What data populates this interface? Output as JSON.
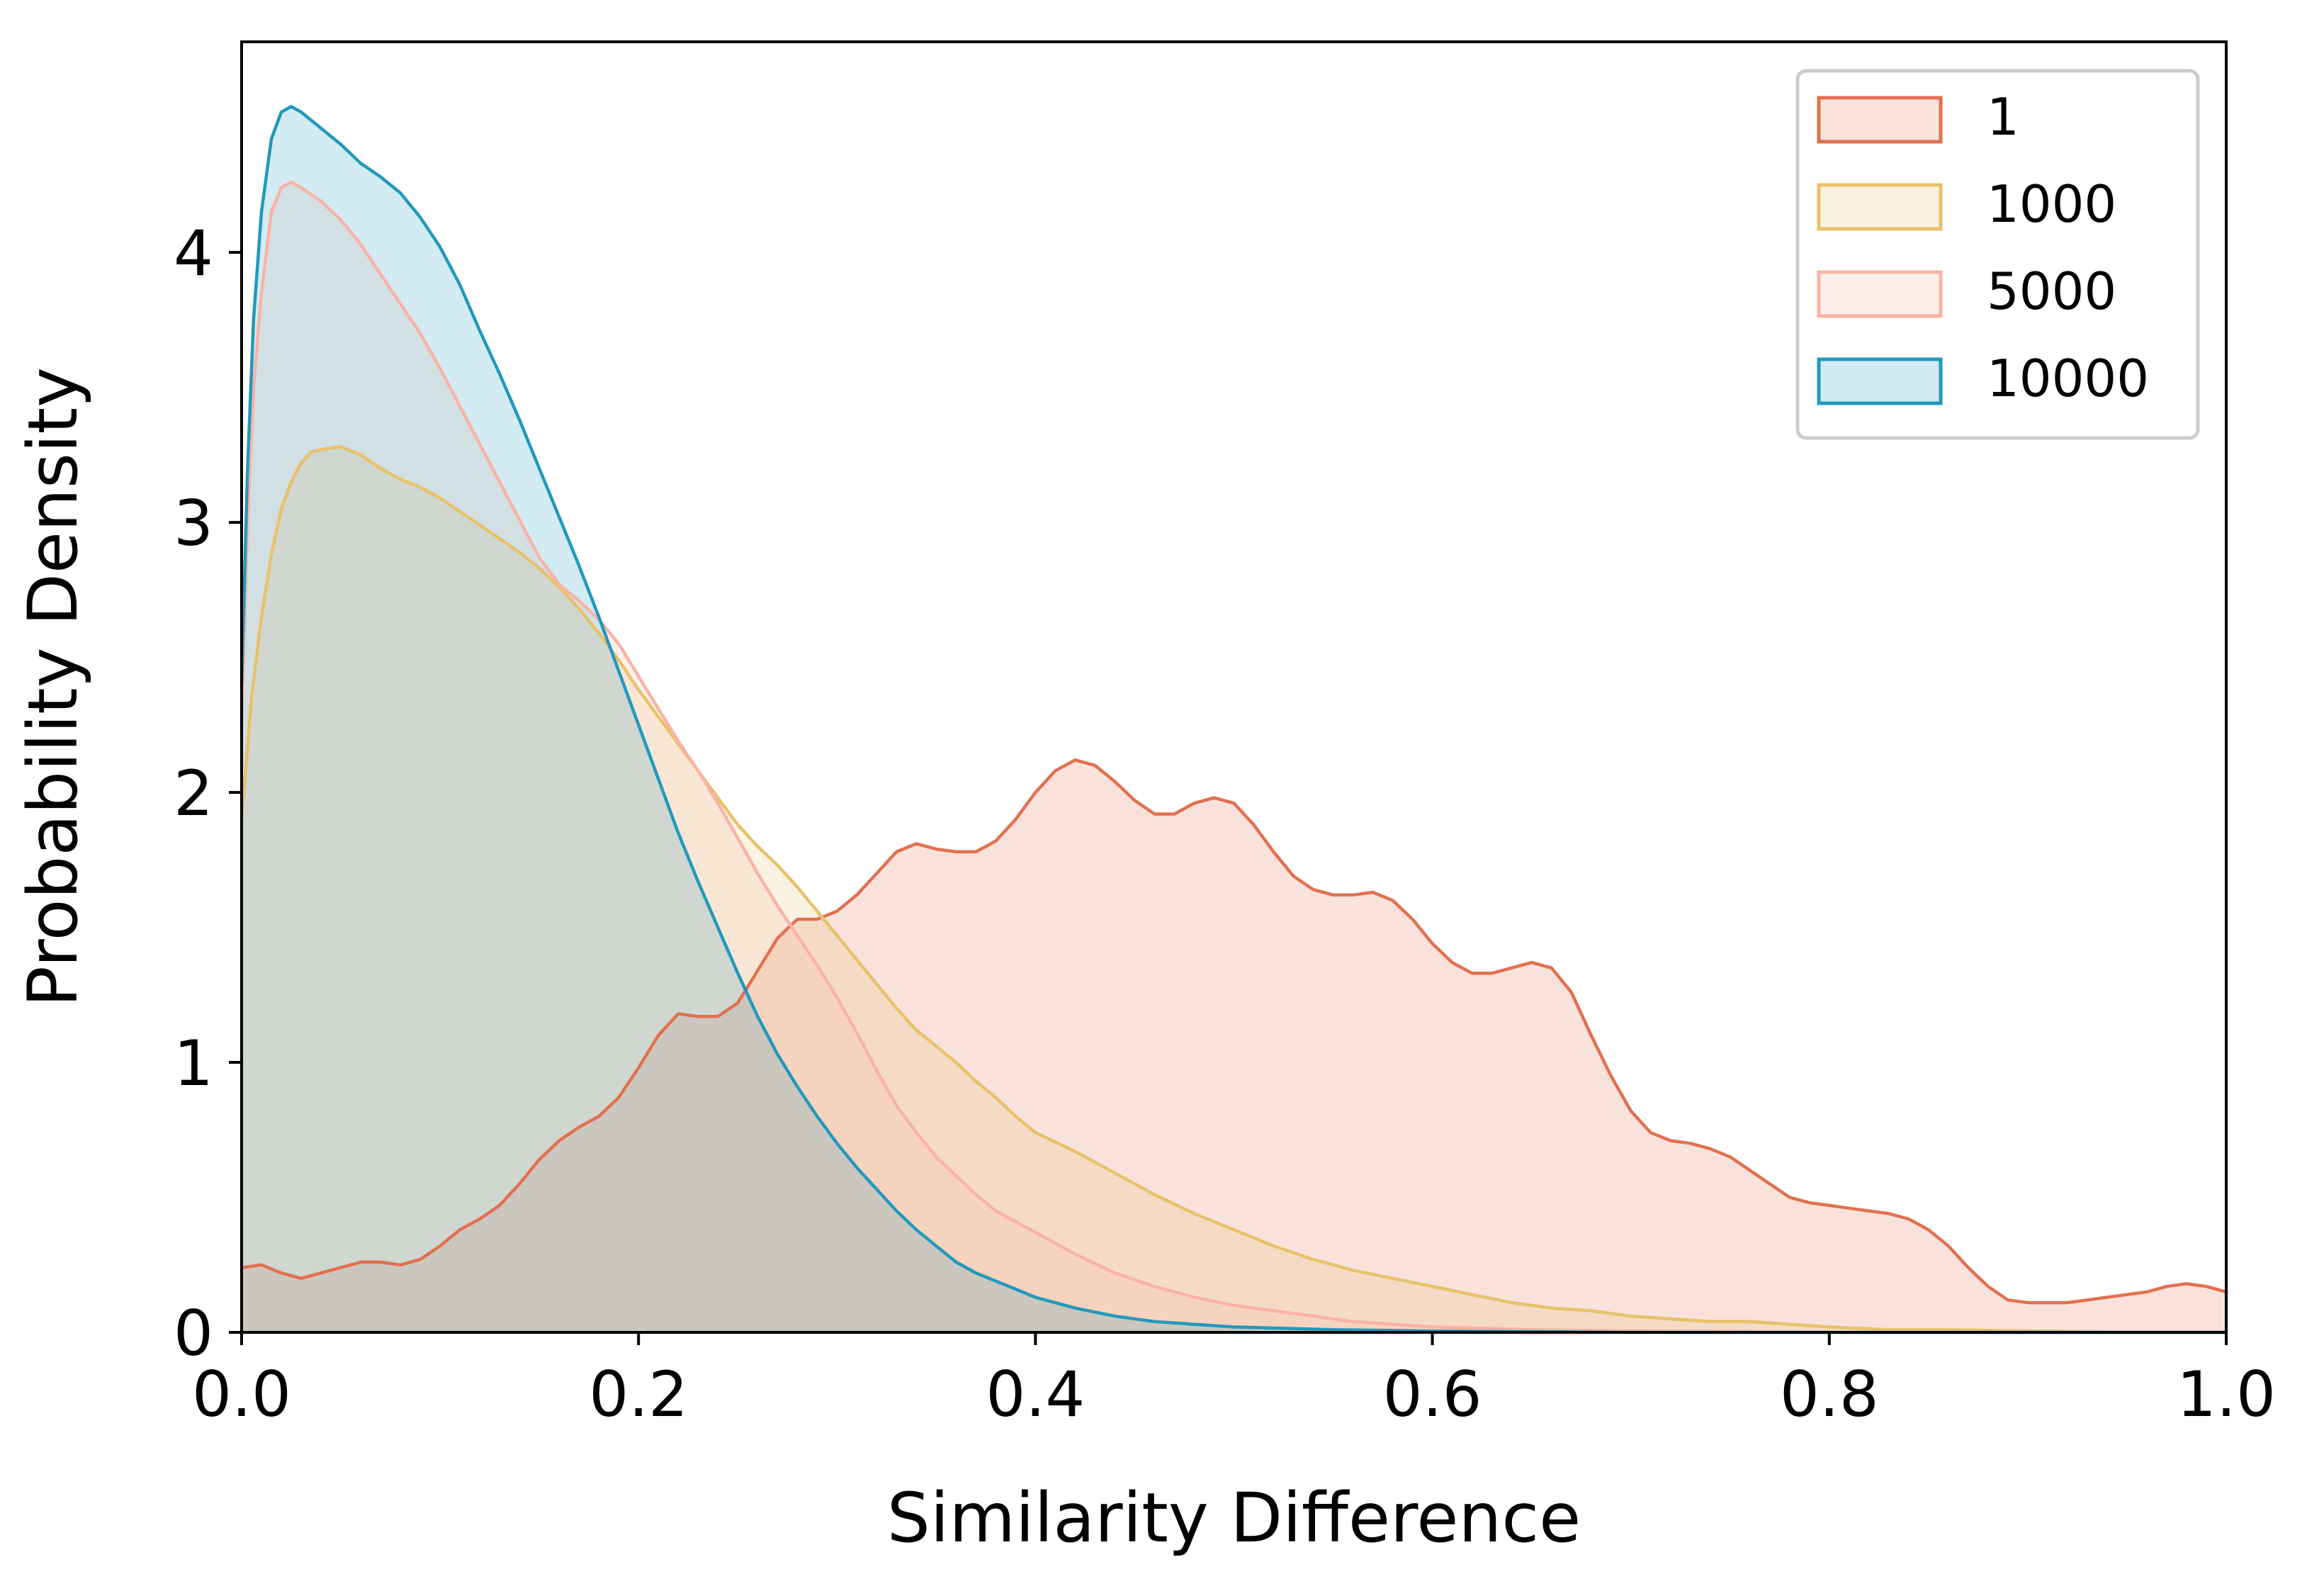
{
  "chart_data": {
    "type": "area",
    "title": "",
    "xlabel": "Similarity Difference",
    "ylabel": "Probability Density",
    "xlim": [
      0.0,
      1.0
    ],
    "ylim": [
      0,
      4.78
    ],
    "x_ticks": [
      "0.0",
      "0.2",
      "0.4",
      "0.6",
      "0.8",
      "1.0"
    ],
    "y_ticks": [
      "0",
      "1",
      "2",
      "3",
      "4"
    ],
    "grid": false,
    "legend_position": "top-right",
    "series": [
      {
        "name": "1",
        "color": "#E3704F",
        "points": [
          [
            0.0,
            0.24
          ],
          [
            0.01,
            0.25
          ],
          [
            0.02,
            0.22
          ],
          [
            0.03,
            0.2
          ],
          [
            0.04,
            0.22
          ],
          [
            0.05,
            0.24
          ],
          [
            0.06,
            0.26
          ],
          [
            0.07,
            0.26
          ],
          [
            0.08,
            0.25
          ],
          [
            0.09,
            0.27
          ],
          [
            0.1,
            0.32
          ],
          [
            0.11,
            0.38
          ],
          [
            0.12,
            0.42
          ],
          [
            0.13,
            0.47
          ],
          [
            0.14,
            0.55
          ],
          [
            0.15,
            0.64
          ],
          [
            0.16,
            0.71
          ],
          [
            0.17,
            0.76
          ],
          [
            0.18,
            0.8
          ],
          [
            0.19,
            0.87
          ],
          [
            0.2,
            0.98
          ],
          [
            0.21,
            1.1
          ],
          [
            0.22,
            1.18
          ],
          [
            0.23,
            1.17
          ],
          [
            0.24,
            1.17
          ],
          [
            0.25,
            1.22
          ],
          [
            0.26,
            1.34
          ],
          [
            0.27,
            1.46
          ],
          [
            0.28,
            1.53
          ],
          [
            0.29,
            1.53
          ],
          [
            0.3,
            1.56
          ],
          [
            0.31,
            1.62
          ],
          [
            0.32,
            1.7
          ],
          [
            0.33,
            1.78
          ],
          [
            0.34,
            1.81
          ],
          [
            0.35,
            1.79
          ],
          [
            0.36,
            1.78
          ],
          [
            0.37,
            1.78
          ],
          [
            0.38,
            1.82
          ],
          [
            0.39,
            1.9
          ],
          [
            0.4,
            2.0
          ],
          [
            0.41,
            2.08
          ],
          [
            0.42,
            2.12
          ],
          [
            0.43,
            2.1
          ],
          [
            0.44,
            2.04
          ],
          [
            0.45,
            1.97
          ],
          [
            0.46,
            1.92
          ],
          [
            0.47,
            1.92
          ],
          [
            0.48,
            1.96
          ],
          [
            0.49,
            1.98
          ],
          [
            0.5,
            1.96
          ],
          [
            0.51,
            1.88
          ],
          [
            0.52,
            1.78
          ],
          [
            0.53,
            1.69
          ],
          [
            0.54,
            1.64
          ],
          [
            0.55,
            1.62
          ],
          [
            0.56,
            1.62
          ],
          [
            0.57,
            1.63
          ],
          [
            0.58,
            1.6
          ],
          [
            0.59,
            1.53
          ],
          [
            0.6,
            1.44
          ],
          [
            0.61,
            1.37
          ],
          [
            0.62,
            1.33
          ],
          [
            0.63,
            1.33
          ],
          [
            0.64,
            1.35
          ],
          [
            0.65,
            1.37
          ],
          [
            0.66,
            1.35
          ],
          [
            0.67,
            1.26
          ],
          [
            0.68,
            1.1
          ],
          [
            0.69,
            0.95
          ],
          [
            0.7,
            0.82
          ],
          [
            0.71,
            0.74
          ],
          [
            0.72,
            0.71
          ],
          [
            0.73,
            0.7
          ],
          [
            0.74,
            0.68
          ],
          [
            0.75,
            0.65
          ],
          [
            0.76,
            0.6
          ],
          [
            0.77,
            0.55
          ],
          [
            0.78,
            0.5
          ],
          [
            0.79,
            0.48
          ],
          [
            0.8,
            0.47
          ],
          [
            0.81,
            0.46
          ],
          [
            0.82,
            0.45
          ],
          [
            0.83,
            0.44
          ],
          [
            0.84,
            0.42
          ],
          [
            0.85,
            0.38
          ],
          [
            0.86,
            0.32
          ],
          [
            0.87,
            0.24
          ],
          [
            0.88,
            0.17
          ],
          [
            0.89,
            0.12
          ],
          [
            0.9,
            0.11
          ],
          [
            0.91,
            0.11
          ],
          [
            0.92,
            0.11
          ],
          [
            0.93,
            0.12
          ],
          [
            0.94,
            0.13
          ],
          [
            0.95,
            0.14
          ],
          [
            0.96,
            0.15
          ],
          [
            0.97,
            0.17
          ],
          [
            0.98,
            0.18
          ],
          [
            0.99,
            0.17
          ],
          [
            1.0,
            0.15
          ]
        ]
      },
      {
        "name": "1000",
        "color": "#E8C26A",
        "points": [
          [
            0.0,
            1.9
          ],
          [
            0.005,
            2.35
          ],
          [
            0.01,
            2.65
          ],
          [
            0.015,
            2.88
          ],
          [
            0.02,
            3.05
          ],
          [
            0.025,
            3.15
          ],
          [
            0.03,
            3.22
          ],
          [
            0.035,
            3.26
          ],
          [
            0.04,
            3.27
          ],
          [
            0.05,
            3.28
          ],
          [
            0.06,
            3.25
          ],
          [
            0.07,
            3.2
          ],
          [
            0.08,
            3.16
          ],
          [
            0.09,
            3.13
          ],
          [
            0.1,
            3.09
          ],
          [
            0.11,
            3.04
          ],
          [
            0.12,
            2.99
          ],
          [
            0.13,
            2.94
          ],
          [
            0.14,
            2.89
          ],
          [
            0.15,
            2.83
          ],
          [
            0.16,
            2.76
          ],
          [
            0.17,
            2.68
          ],
          [
            0.18,
            2.59
          ],
          [
            0.19,
            2.49
          ],
          [
            0.2,
            2.38
          ],
          [
            0.21,
            2.28
          ],
          [
            0.22,
            2.18
          ],
          [
            0.23,
            2.08
          ],
          [
            0.24,
            1.98
          ],
          [
            0.25,
            1.88
          ],
          [
            0.26,
            1.8
          ],
          [
            0.27,
            1.73
          ],
          [
            0.28,
            1.65
          ],
          [
            0.29,
            1.56
          ],
          [
            0.3,
            1.47
          ],
          [
            0.31,
            1.38
          ],
          [
            0.32,
            1.29
          ],
          [
            0.33,
            1.2
          ],
          [
            0.34,
            1.12
          ],
          [
            0.35,
            1.06
          ],
          [
            0.36,
            1.0
          ],
          [
            0.37,
            0.93
          ],
          [
            0.38,
            0.87
          ],
          [
            0.39,
            0.8
          ],
          [
            0.4,
            0.74
          ],
          [
            0.42,
            0.67
          ],
          [
            0.44,
            0.59
          ],
          [
            0.46,
            0.51
          ],
          [
            0.48,
            0.44
          ],
          [
            0.5,
            0.38
          ],
          [
            0.52,
            0.32
          ],
          [
            0.54,
            0.27
          ],
          [
            0.56,
            0.23
          ],
          [
            0.58,
            0.2
          ],
          [
            0.6,
            0.17
          ],
          [
            0.62,
            0.14
          ],
          [
            0.64,
            0.11
          ],
          [
            0.66,
            0.09
          ],
          [
            0.68,
            0.08
          ],
          [
            0.7,
            0.06
          ],
          [
            0.72,
            0.05
          ],
          [
            0.74,
            0.04
          ],
          [
            0.76,
            0.04
          ],
          [
            0.78,
            0.03
          ],
          [
            0.8,
            0.02
          ],
          [
            0.83,
            0.01
          ],
          [
            0.86,
            0.01
          ],
          [
            0.9,
            0.005
          ],
          [
            0.95,
            0.0
          ],
          [
            1.0,
            0.0
          ]
        ]
      },
      {
        "name": "5000",
        "color": "#F9B3A5",
        "points": [
          [
            0.0,
            2.25
          ],
          [
            0.003,
            3.0
          ],
          [
            0.006,
            3.5
          ],
          [
            0.01,
            3.85
          ],
          [
            0.015,
            4.15
          ],
          [
            0.02,
            4.24
          ],
          [
            0.025,
            4.26
          ],
          [
            0.03,
            4.24
          ],
          [
            0.04,
            4.19
          ],
          [
            0.05,
            4.12
          ],
          [
            0.06,
            4.03
          ],
          [
            0.07,
            3.92
          ],
          [
            0.08,
            3.81
          ],
          [
            0.09,
            3.7
          ],
          [
            0.1,
            3.57
          ],
          [
            0.11,
            3.43
          ],
          [
            0.12,
            3.29
          ],
          [
            0.13,
            3.15
          ],
          [
            0.14,
            3.01
          ],
          [
            0.15,
            2.87
          ],
          [
            0.16,
            2.77
          ],
          [
            0.17,
            2.71
          ],
          [
            0.18,
            2.64
          ],
          [
            0.19,
            2.55
          ],
          [
            0.2,
            2.43
          ],
          [
            0.21,
            2.31
          ],
          [
            0.22,
            2.19
          ],
          [
            0.23,
            2.08
          ],
          [
            0.24,
            1.96
          ],
          [
            0.25,
            1.83
          ],
          [
            0.26,
            1.7
          ],
          [
            0.27,
            1.58
          ],
          [
            0.28,
            1.47
          ],
          [
            0.29,
            1.36
          ],
          [
            0.3,
            1.24
          ],
          [
            0.31,
            1.11
          ],
          [
            0.32,
            0.97
          ],
          [
            0.33,
            0.84
          ],
          [
            0.34,
            0.74
          ],
          [
            0.35,
            0.65
          ],
          [
            0.36,
            0.58
          ],
          [
            0.37,
            0.51
          ],
          [
            0.38,
            0.45
          ],
          [
            0.39,
            0.41
          ],
          [
            0.4,
            0.37
          ],
          [
            0.42,
            0.29
          ],
          [
            0.44,
            0.22
          ],
          [
            0.46,
            0.17
          ],
          [
            0.48,
            0.13
          ],
          [
            0.5,
            0.1
          ],
          [
            0.52,
            0.08
          ],
          [
            0.54,
            0.06
          ],
          [
            0.56,
            0.04
          ],
          [
            0.58,
            0.03
          ],
          [
            0.6,
            0.02
          ],
          [
            0.65,
            0.01
          ],
          [
            0.7,
            0.005
          ],
          [
            0.8,
            0.0
          ],
          [
            1.0,
            0.0
          ]
        ]
      },
      {
        "name": "10000",
        "color": "#2299BD",
        "points": [
          [
            0.0,
            2.4
          ],
          [
            0.003,
            3.2
          ],
          [
            0.006,
            3.75
          ],
          [
            0.01,
            4.15
          ],
          [
            0.015,
            4.42
          ],
          [
            0.02,
            4.52
          ],
          [
            0.025,
            4.54
          ],
          [
            0.03,
            4.52
          ],
          [
            0.04,
            4.46
          ],
          [
            0.05,
            4.4
          ],
          [
            0.06,
            4.33
          ],
          [
            0.07,
            4.28
          ],
          [
            0.08,
            4.22
          ],
          [
            0.09,
            4.13
          ],
          [
            0.1,
            4.02
          ],
          [
            0.11,
            3.88
          ],
          [
            0.12,
            3.71
          ],
          [
            0.13,
            3.55
          ],
          [
            0.14,
            3.38
          ],
          [
            0.15,
            3.2
          ],
          [
            0.16,
            3.02
          ],
          [
            0.17,
            2.84
          ],
          [
            0.18,
            2.65
          ],
          [
            0.19,
            2.45
          ],
          [
            0.2,
            2.25
          ],
          [
            0.21,
            2.05
          ],
          [
            0.22,
            1.85
          ],
          [
            0.23,
            1.67
          ],
          [
            0.24,
            1.5
          ],
          [
            0.25,
            1.33
          ],
          [
            0.26,
            1.17
          ],
          [
            0.27,
            1.03
          ],
          [
            0.28,
            0.91
          ],
          [
            0.29,
            0.8
          ],
          [
            0.3,
            0.7
          ],
          [
            0.31,
            0.61
          ],
          [
            0.32,
            0.53
          ],
          [
            0.33,
            0.45
          ],
          [
            0.34,
            0.38
          ],
          [
            0.35,
            0.32
          ],
          [
            0.36,
            0.26
          ],
          [
            0.37,
            0.22
          ],
          [
            0.38,
            0.19
          ],
          [
            0.39,
            0.16
          ],
          [
            0.4,
            0.13
          ],
          [
            0.42,
            0.09
          ],
          [
            0.44,
            0.06
          ],
          [
            0.46,
            0.04
          ],
          [
            0.48,
            0.03
          ],
          [
            0.5,
            0.02
          ],
          [
            0.55,
            0.01
          ],
          [
            0.6,
            0.005
          ],
          [
            0.7,
            0.0
          ],
          [
            1.0,
            0.0
          ]
        ]
      }
    ]
  }
}
